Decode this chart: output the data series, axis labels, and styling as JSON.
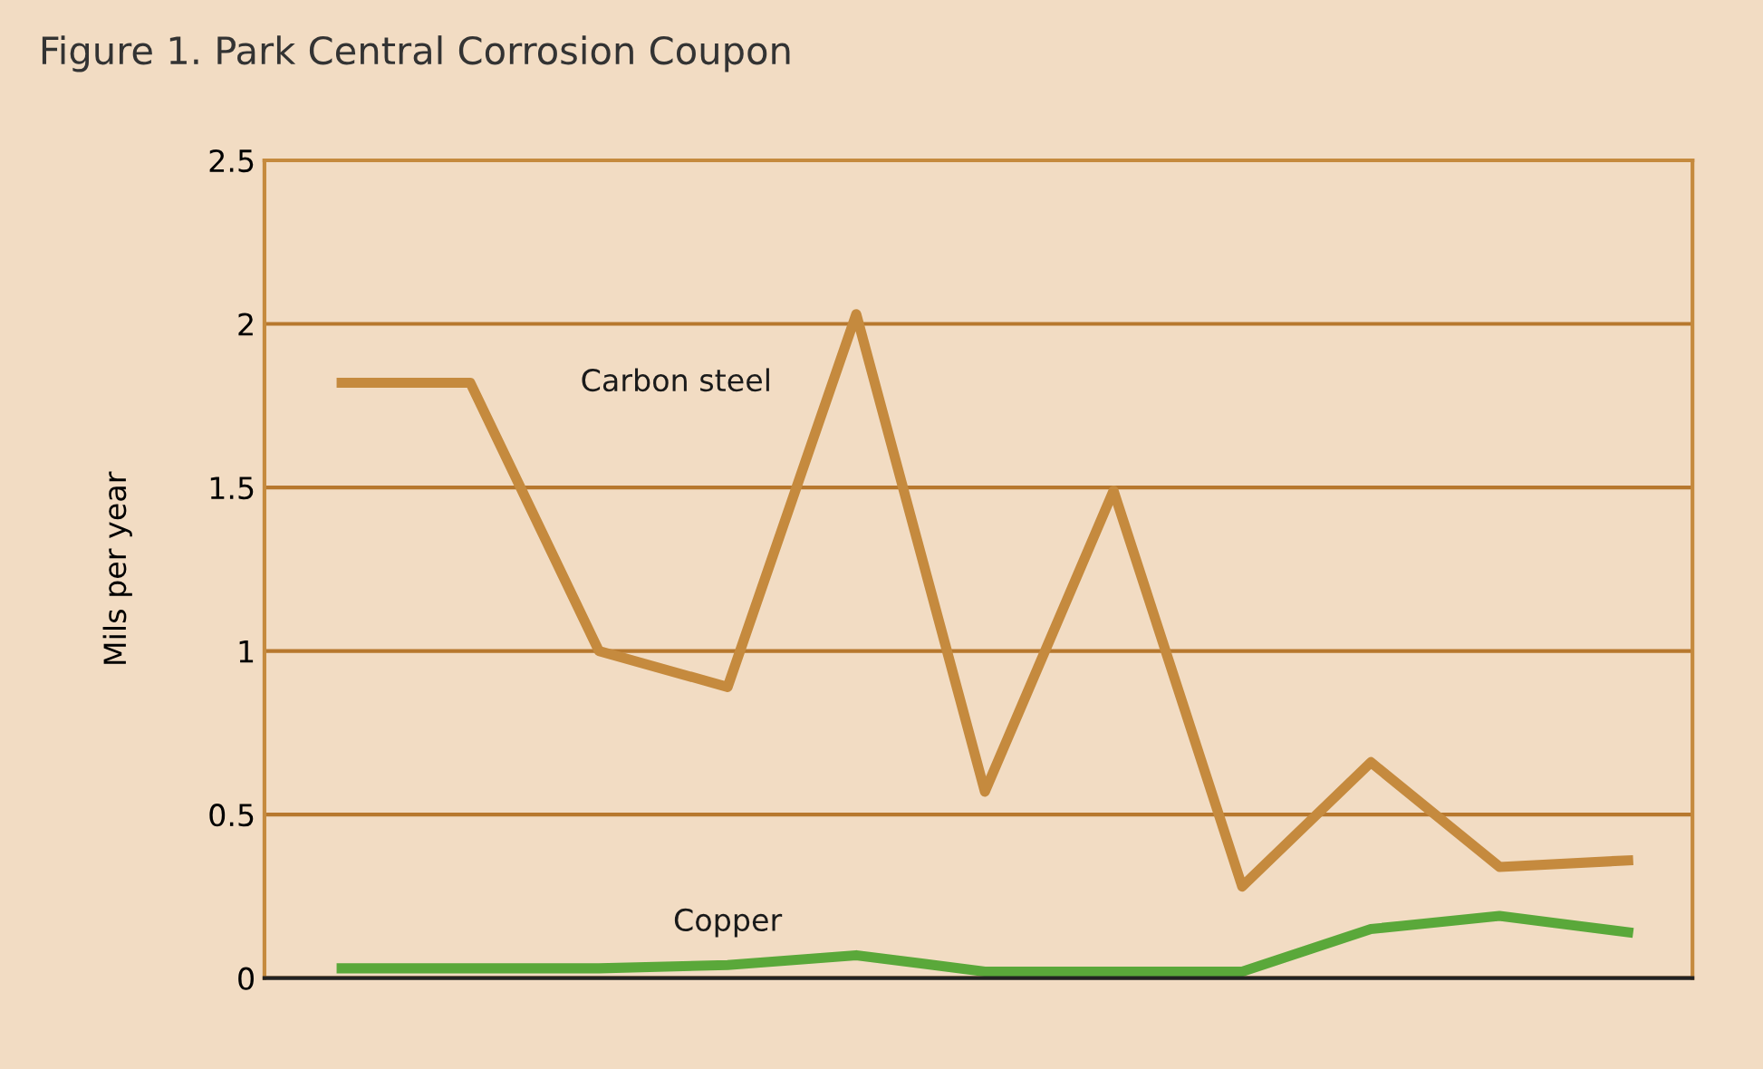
{
  "chart_data": {
    "type": "line",
    "title": "Figure 1. Park Central Corrosion Coupon",
    "ylabel": "Mils per year",
    "categories": [
      null,
      null,
      null,
      null,
      null,
      null,
      null,
      null,
      null,
      null,
      null
    ],
    "series": [
      {
        "name": "Carbon steel",
        "color": "#c58a3e",
        "values": [
          1.82,
          1.82,
          1.0,
          0.89,
          2.03,
          0.57,
          1.49,
          0.28,
          0.66,
          0.34,
          0.36
        ]
      },
      {
        "name": "Copper",
        "color": "#5aa83a",
        "values": [
          0.03,
          0.03,
          0.03,
          0.04,
          0.07,
          0.02,
          0.02,
          0.02,
          0.15,
          0.19,
          0.14
        ]
      }
    ],
    "ylim": [
      0,
      2.5
    ],
    "yticks": [
      0,
      0.5,
      1,
      1.5,
      2,
      2.5
    ],
    "grid": "y",
    "marker": "none",
    "line_style": "solid"
  }
}
